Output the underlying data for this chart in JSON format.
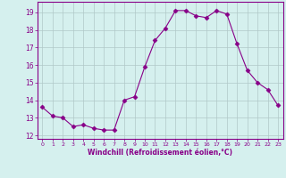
{
  "x": [
    0,
    1,
    2,
    3,
    4,
    5,
    6,
    7,
    8,
    9,
    10,
    11,
    12,
    13,
    14,
    15,
    16,
    17,
    18,
    19,
    20,
    21,
    22,
    23
  ],
  "y": [
    13.6,
    13.1,
    13.0,
    12.5,
    12.6,
    12.4,
    12.3,
    12.3,
    14.0,
    14.2,
    15.9,
    17.4,
    18.1,
    19.1,
    19.1,
    18.8,
    18.7,
    19.1,
    18.9,
    17.2,
    15.7,
    15.0,
    14.6,
    13.7
  ],
  "line_color": "#880088",
  "marker": "D",
  "marker_size": 2.5,
  "bg_color": "#d5f0ee",
  "grid_color": "#b0c8c8",
  "xlabel": "Windchill (Refroidissement éolien,°C)",
  "xlim": [
    -0.5,
    23.5
  ],
  "ylim": [
    11.8,
    19.6
  ],
  "yticks": [
    12,
    13,
    14,
    15,
    16,
    17,
    18,
    19
  ],
  "xticks": [
    0,
    1,
    2,
    3,
    4,
    5,
    6,
    7,
    8,
    9,
    10,
    11,
    12,
    13,
    14,
    15,
    16,
    17,
    18,
    19,
    20,
    21,
    22,
    23
  ],
  "tick_color": "#880088",
  "label_color": "#880088",
  "spine_color": "#880088"
}
